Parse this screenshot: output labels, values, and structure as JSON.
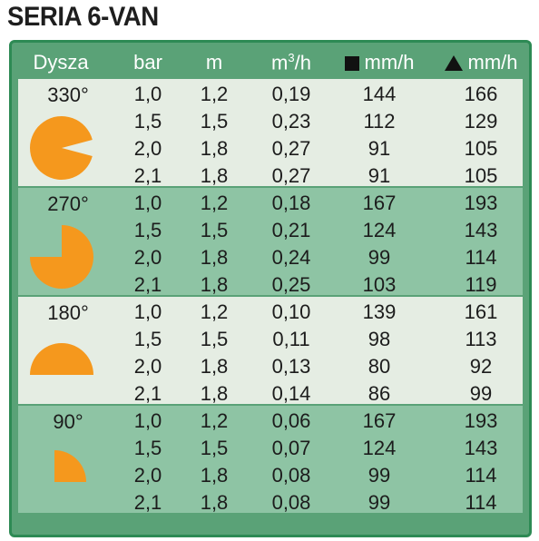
{
  "title": "SERIA 6-VAN",
  "header": {
    "nozzle": "Dysza",
    "pressure": "bar",
    "radius": "m",
    "flow_base": "m",
    "flow_sup": "3",
    "flow_tail": "/h",
    "square_rate": "mm/h",
    "triangle_rate": "mm/h"
  },
  "colors": {
    "frame": "#5aa277",
    "border": "#2d8a54",
    "light_row": "#e5ede3",
    "dark_row": "#8ec4a4",
    "shape": "#f5981d"
  },
  "sections": [
    {
      "angle": "330°",
      "shape": "330-degree-sector",
      "rows": [
        [
          "1,0",
          "1,2",
          "0,19",
          "144",
          "166"
        ],
        [
          "1,5",
          "1,5",
          "0,23",
          "112",
          "129"
        ],
        [
          "2,0",
          "1,8",
          "0,27",
          "91",
          "105"
        ],
        [
          "2,1",
          "1,8",
          "0,27",
          "91",
          "105"
        ]
      ]
    },
    {
      "angle": "270°",
      "shape": "270-degree-sector",
      "rows": [
        [
          "1,0",
          "1,2",
          "0,18",
          "167",
          "193"
        ],
        [
          "1,5",
          "1,5",
          "0,21",
          "124",
          "143"
        ],
        [
          "2,0",
          "1,8",
          "0,24",
          "99",
          "114"
        ],
        [
          "2,1",
          "1,8",
          "0,25",
          "103",
          "119"
        ]
      ]
    },
    {
      "angle": "180°",
      "shape": "180-degree-sector",
      "rows": [
        [
          "1,0",
          "1,2",
          "0,10",
          "139",
          "161"
        ],
        [
          "1,5",
          "1,5",
          "0,11",
          "98",
          "113"
        ],
        [
          "2,0",
          "1,8",
          "0,13",
          "80",
          "92"
        ],
        [
          "2,1",
          "1,8",
          "0,14",
          "86",
          "99"
        ]
      ]
    },
    {
      "angle": "90°",
      "shape": "90-degree-sector",
      "rows": [
        [
          "1,0",
          "1,2",
          "0,06",
          "167",
          "193"
        ],
        [
          "1,5",
          "1,5",
          "0,07",
          "124",
          "143"
        ],
        [
          "2,0",
          "1,8",
          "0,08",
          "99",
          "114"
        ],
        [
          "2,1",
          "1,8",
          "0,08",
          "99",
          "114"
        ]
      ]
    }
  ]
}
